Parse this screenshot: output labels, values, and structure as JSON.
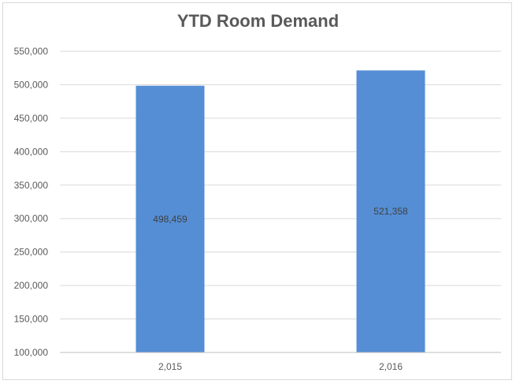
{
  "chart_data": {
    "type": "bar",
    "title": "YTD Room Demand",
    "xlabel": "",
    "ylabel": "",
    "categories": [
      "2,015",
      "2,016"
    ],
    "series": [
      {
        "values": [
          498459,
          521358
        ],
        "data_labels": [
          "498,459",
          "521,358"
        ]
      }
    ],
    "ylim": [
      100000,
      550000
    ],
    "yticks": [
      100000,
      150000,
      200000,
      250000,
      300000,
      350000,
      400000,
      450000,
      500000,
      550000
    ],
    "ytick_labels": [
      "100,000",
      "150,000",
      "200,000",
      "250,000",
      "300,000",
      "350,000",
      "400,000",
      "450,000",
      "500,000",
      "550,000"
    ],
    "grid": true,
    "legend": "none",
    "bar_color": "#558ed5"
  }
}
